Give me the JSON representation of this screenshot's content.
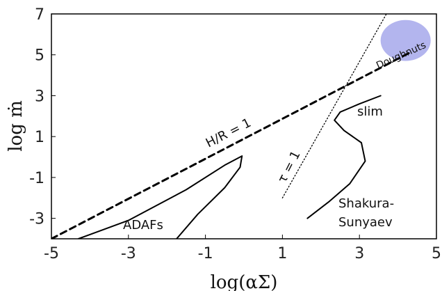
{
  "chart_data": {
    "type": "line",
    "xlabel": "log(αΣ)",
    "ylabel": "log ṁ",
    "xlim": [
      -5,
      5
    ],
    "ylim": [
      -4,
      7
    ],
    "xticks": [
      "-5",
      "-3",
      "-1",
      "1",
      "3",
      "5"
    ],
    "yticks": [
      "-3",
      "-1",
      "1",
      "3",
      "5",
      "7"
    ],
    "grid": false,
    "series": [
      {
        "name": "H/R = 1",
        "style": "dashed",
        "points": [
          [
            -5,
            -4
          ],
          [
            4.3,
            5.1
          ]
        ]
      },
      {
        "name": "τ = 1",
        "style": "dotted",
        "points": [
          [
            1,
            -2
          ],
          [
            3.7,
            7
          ]
        ]
      },
      {
        "name": "ADAFs",
        "style": "solid",
        "points": [
          [
            -4.3,
            -4
          ],
          [
            -3.0,
            -3.1
          ],
          [
            -1.5,
            -1.6
          ],
          [
            -0.5,
            -0.4
          ],
          [
            -0.05,
            0.05
          ],
          [
            -0.1,
            -0.5
          ],
          [
            -0.5,
            -1.5
          ],
          [
            -1.2,
            -2.8
          ],
          [
            -1.75,
            -4
          ]
        ]
      },
      {
        "name": "slim / Shakura-Sunyaev",
        "style": "solid",
        "points": [
          [
            1.65,
            -3
          ],
          [
            2.2,
            -2.2
          ],
          [
            2.75,
            -1.3
          ],
          [
            3.15,
            -0.2
          ],
          [
            3.05,
            0.7
          ],
          [
            2.6,
            1.3
          ],
          [
            2.35,
            1.8
          ],
          [
            2.5,
            2.2
          ],
          [
            3.0,
            2.6
          ],
          [
            3.55,
            3.0
          ]
        ]
      }
    ],
    "annotations": {
      "hr": "H/R = 1",
      "tau": "τ = 1",
      "slim": "slim",
      "ss1": "Shakura-",
      "ss2": "Sunyaev",
      "adafs": "ADAFs",
      "doughnuts": "Doughnuts"
    },
    "doughnuts_region": {
      "cx": 4.2,
      "cy": 5.7,
      "rx": 0.65,
      "ry": 1.0
    },
    "colors": {
      "doughnuts_fill": "#b3b5ee",
      "line": "#000000"
    }
  }
}
